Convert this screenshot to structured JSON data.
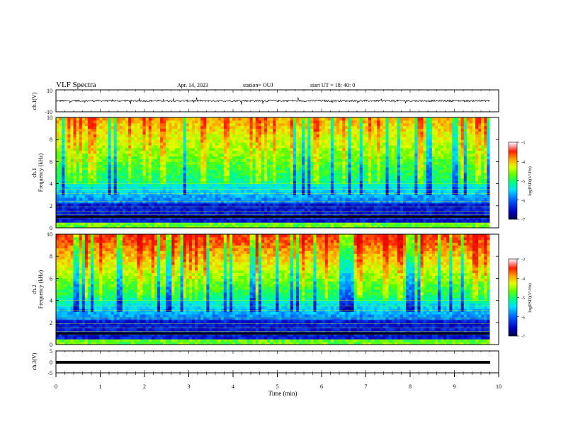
{
  "header": {
    "title": "VLF Spectra",
    "date": "Apr. 14, 2023",
    "station": "station= OUJ",
    "start": "start  UT =   18: 40: 0"
  },
  "chart_data": [
    {
      "type": "line",
      "panel": "ch.1 waveform",
      "ylabel": "ch.1(V)",
      "ylim": [
        -10,
        10
      ],
      "yticks": [
        "10",
        "-10"
      ],
      "xlim": [
        0,
        10
      ],
      "series": [
        {
          "values": "noisy waveform centered near 0 V, amplitude about ±1 V with occasional spikes to about ±3 V"
        }
      ]
    },
    {
      "type": "heatmap",
      "panel": "ch.1 spectrogram",
      "ylabel_top": "ch.1",
      "ylabel": "Frequency (kHz)",
      "ylim": [
        0,
        10
      ],
      "yticks": [
        "0",
        "2",
        "4",
        "6",
        "8",
        "10"
      ],
      "xlim": [
        0,
        9.8
      ],
      "colorbar": {
        "label": "log(PSD)(V²/Hz)",
        "range": [
          -7,
          -3
        ],
        "ticks": [
          "-3",
          "-4",
          "-5",
          "-6",
          "-7"
        ]
      }
    },
    {
      "type": "heatmap",
      "panel": "ch.2 spectrogram",
      "ylabel_top": "ch.2",
      "ylabel": "Frequency (kHz)",
      "ylim": [
        0,
        10
      ],
      "yticks": [
        "0",
        "2",
        "4",
        "6",
        "8",
        "10"
      ],
      "xlim": [
        0,
        9.8
      ],
      "colorbar": {
        "label": "log(PSD)(V²/Hz)",
        "range": [
          -7,
          -3
        ],
        "ticks": [
          "-3",
          "-4",
          "-5",
          "-6",
          "-7"
        ]
      }
    },
    {
      "type": "line",
      "panel": "ch.3 waveform",
      "ylabel": "ch.3(V)",
      "ylim": [
        -5,
        5
      ],
      "yticks": [
        "5",
        "0",
        "-5"
      ],
      "xlim": [
        0,
        10
      ],
      "series": [
        {
          "values": "flat line at about -0.3 V"
        }
      ]
    }
  ],
  "xaxis": {
    "label": "Time (min)",
    "ticks": [
      "0",
      "1",
      "2",
      "3",
      "4",
      "5",
      "6",
      "7",
      "8",
      "9",
      "10"
    ]
  },
  "colors": {
    "colormap": [
      "#000060",
      "#0000c8",
      "#0060ff",
      "#00c8ff",
      "#00ffc0",
      "#40ff40",
      "#c8ff00",
      "#ffff00",
      "#ffa000",
      "#ff3000",
      "#e00000",
      "#ffffff"
    ]
  }
}
